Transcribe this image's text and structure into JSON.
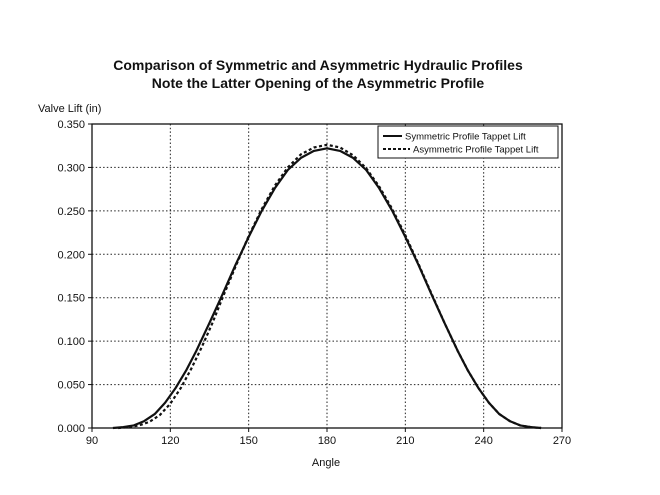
{
  "chart_data": {
    "type": "line",
    "title": "Comparison of Symmetric and Asymmetric Hydraulic Profiles",
    "subtitle": "Note the Latter Opening of the Asymmetric Profile",
    "xlabel": "Angle",
    "ylabel": "Valve Lift (in)",
    "xlim": [
      90,
      270
    ],
    "ylim": [
      0,
      0.35
    ],
    "xticks": [
      "90",
      "120",
      "150",
      "180",
      "210",
      "240",
      "270"
    ],
    "yticks": [
      "0.000",
      "0.050",
      "0.100",
      "0.150",
      "0.200",
      "0.250",
      "0.300",
      "0.350"
    ],
    "grid": true,
    "legend_position": "top-right",
    "series": [
      {
        "name": "Symmetric Profile Tappet Lift",
        "style": "solid",
        "color": "#111111",
        "x": [
          98,
          102,
          106,
          110,
          114,
          118,
          122,
          126,
          130,
          135,
          140,
          145,
          150,
          155,
          160,
          165,
          170,
          175,
          180,
          185,
          190,
          195,
          200,
          205,
          210,
          215,
          220,
          225,
          230,
          234,
          238,
          242,
          246,
          250,
          254,
          258,
          262
        ],
        "y": [
          0.0,
          0.001,
          0.003,
          0.008,
          0.016,
          0.029,
          0.046,
          0.066,
          0.089,
          0.121,
          0.154,
          0.188,
          0.22,
          0.25,
          0.276,
          0.297,
          0.311,
          0.319,
          0.322,
          0.319,
          0.311,
          0.297,
          0.276,
          0.25,
          0.22,
          0.188,
          0.154,
          0.121,
          0.089,
          0.066,
          0.046,
          0.029,
          0.016,
          0.008,
          0.003,
          0.001,
          0.0
        ]
      },
      {
        "name": "Asymmetric Profile Tappet Lift",
        "style": "dashed",
        "color": "#111111",
        "x": [
          100,
          104,
          108,
          112,
          116,
          120,
          124,
          128,
          132,
          136,
          140,
          145,
          150,
          155,
          160,
          165,
          170,
          175,
          180,
          185,
          190,
          195,
          200,
          205,
          210,
          215,
          220,
          225,
          230,
          234,
          238,
          242,
          246,
          250,
          254,
          258,
          262
        ],
        "y": [
          0.0,
          0.001,
          0.003,
          0.007,
          0.015,
          0.028,
          0.046,
          0.068,
          0.093,
          0.12,
          0.15,
          0.186,
          0.221,
          0.252,
          0.279,
          0.3,
          0.315,
          0.323,
          0.326,
          0.323,
          0.314,
          0.299,
          0.278,
          0.252,
          0.222,
          0.189,
          0.155,
          0.121,
          0.089,
          0.066,
          0.046,
          0.029,
          0.016,
          0.008,
          0.003,
          0.001,
          0.0
        ]
      }
    ]
  }
}
